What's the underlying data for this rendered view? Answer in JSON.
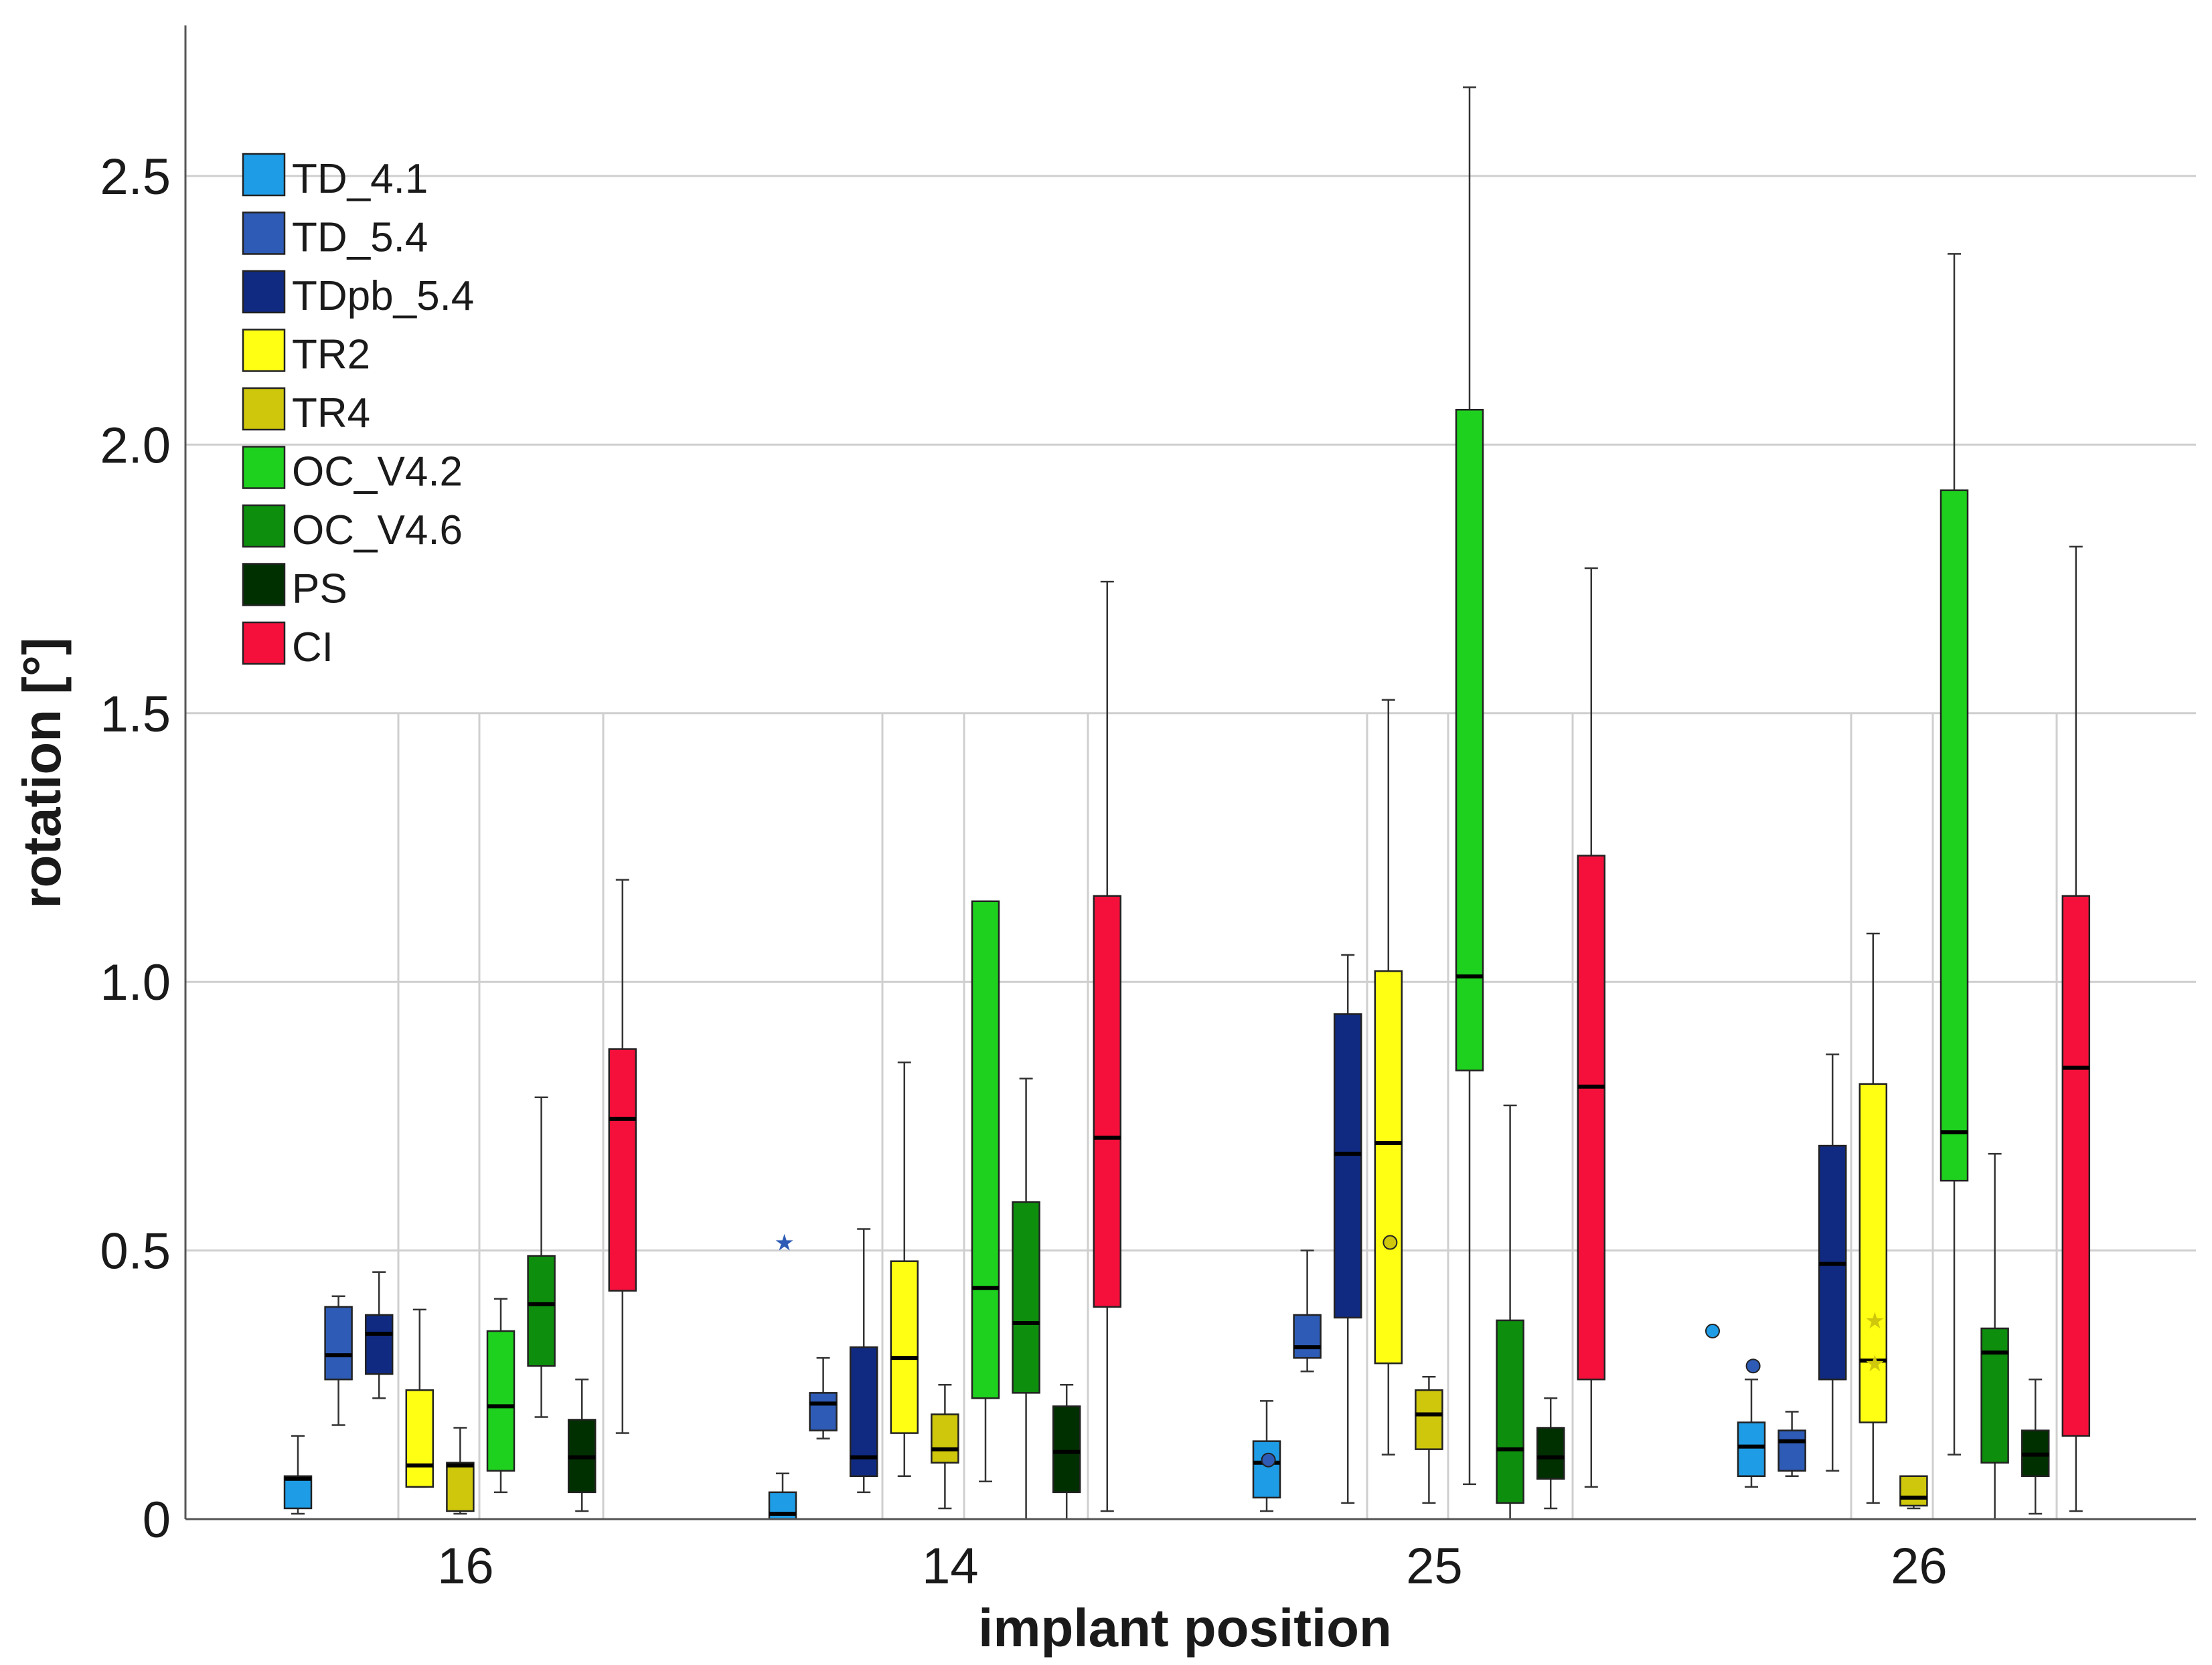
{
  "chart_data": {
    "type": "boxplot",
    "title": "",
    "xlabel": "implant position",
    "ylabel": "rotation [°]",
    "ylim": [
      0,
      2.75
    ],
    "yticks": [
      0,
      0.5,
      1.0,
      1.5,
      2.0,
      2.5
    ],
    "ytick_labels": [
      "0",
      "0.5",
      "1.0",
      "1.5",
      "2.0",
      "2.5"
    ],
    "grid": true,
    "legend_position": "top-left",
    "categories": [
      "16",
      "14",
      "25",
      "26"
    ],
    "series": [
      {
        "name": "TD_4.1",
        "color": "#1e9ce6",
        "boxes": [
          {
            "min": 0.01,
            "q1": 0.02,
            "median": 0.075,
            "q3": 0.08,
            "max": 0.155,
            "outliers": []
          },
          {
            "min": 0.0,
            "q1": 0.0,
            "median": 0.01,
            "q3": 0.05,
            "max": 0.085,
            "outliers": []
          },
          {
            "min": 0.015,
            "q1": 0.04,
            "median": 0.105,
            "q3": 0.145,
            "max": 0.22,
            "outliers": []
          },
          {
            "min": 0.06,
            "q1": 0.08,
            "median": 0.135,
            "q3": 0.18,
            "max": 0.26,
            "outliers": [
              {
                "value": 0.35,
                "marker": "circle"
              }
            ]
          }
        ]
      },
      {
        "name": "TD_5.4",
        "color": "#2e5bb5",
        "boxes": [
          {
            "min": 0.175,
            "q1": 0.26,
            "median": 0.305,
            "q3": 0.395,
            "max": 0.415,
            "outliers": []
          },
          {
            "min": 0.15,
            "q1": 0.165,
            "median": 0.215,
            "q3": 0.235,
            "max": 0.3,
            "outliers": [
              {
                "value": 0.515,
                "marker": "star"
              }
            ]
          },
          {
            "min": 0.275,
            "q1": 0.3,
            "median": 0.32,
            "q3": 0.38,
            "max": 0.5,
            "outliers": [
              {
                "value": 0.11,
                "marker": "circle"
              }
            ]
          },
          {
            "min": 0.08,
            "q1": 0.09,
            "median": 0.145,
            "q3": 0.165,
            "max": 0.2,
            "outliers": [
              {
                "value": 0.285,
                "marker": "circle"
              }
            ]
          }
        ]
      },
      {
        "name": "TDpb_5.4",
        "color": "#102a82",
        "boxes": [
          {
            "min": 0.225,
            "q1": 0.27,
            "median": 0.345,
            "q3": 0.38,
            "max": 0.46,
            "outliers": []
          },
          {
            "min": 0.05,
            "q1": 0.08,
            "median": 0.115,
            "q3": 0.32,
            "max": 0.54,
            "outliers": []
          },
          {
            "min": 0.03,
            "q1": 0.375,
            "median": 0.68,
            "q3": 0.94,
            "max": 1.05,
            "outliers": []
          },
          {
            "min": 0.09,
            "q1": 0.26,
            "median": 0.475,
            "q3": 0.695,
            "max": 0.865,
            "outliers": []
          }
        ]
      },
      {
        "name": "TR2",
        "color": "#ffff14",
        "boxes": [
          {
            "min": 0.06,
            "q1": 0.06,
            "median": 0.1,
            "q3": 0.24,
            "max": 0.39,
            "outliers": []
          },
          {
            "min": 0.08,
            "q1": 0.16,
            "median": 0.3,
            "q3": 0.48,
            "max": 0.85,
            "outliers": []
          },
          {
            "min": 0.12,
            "q1": 0.29,
            "median": 0.7,
            "q3": 1.02,
            "max": 1.525,
            "outliers": []
          },
          {
            "min": 0.03,
            "q1": 0.18,
            "median": 0.295,
            "q3": 0.81,
            "max": 1.09,
            "outliers": []
          }
        ]
      },
      {
        "name": "TR4",
        "color": "#cfc70b",
        "boxes": [
          {
            "min": 0.01,
            "q1": 0.015,
            "median": 0.1,
            "q3": 0.105,
            "max": 0.17,
            "outliers": []
          },
          {
            "min": 0.02,
            "q1": 0.105,
            "median": 0.13,
            "q3": 0.195,
            "max": 0.25,
            "outliers": []
          },
          {
            "min": 0.03,
            "q1": 0.13,
            "median": 0.195,
            "q3": 0.24,
            "max": 0.265,
            "outliers": [
              {
                "value": 0.515,
                "marker": "circle"
              }
            ]
          },
          {
            "min": 0.02,
            "q1": 0.025,
            "median": 0.04,
            "q3": 0.08,
            "max": 0.08,
            "outliers": [
              {
                "value": 0.29,
                "marker": "star"
              },
              {
                "value": 0.37,
                "marker": "star"
              }
            ]
          }
        ]
      },
      {
        "name": "OC_V4.2",
        "color": "#1ed11e",
        "boxes": [
          {
            "min": 0.05,
            "q1": 0.09,
            "median": 0.21,
            "q3": 0.35,
            "max": 0.41,
            "outliers": []
          },
          {
            "min": 0.07,
            "q1": 0.225,
            "median": 0.43,
            "q3": 1.15,
            "max": 1.15,
            "outliers": []
          },
          {
            "min": 0.065,
            "q1": 0.835,
            "median": 1.01,
            "q3": 2.065,
            "max": 2.665,
            "outliers": []
          },
          {
            "min": 0.12,
            "q1": 0.63,
            "median": 0.72,
            "q3": 1.915,
            "max": 2.355,
            "outliers": []
          }
        ]
      },
      {
        "name": "OC_V4.6",
        "color": "#0d8f0d",
        "boxes": [
          {
            "min": 0.19,
            "q1": 0.285,
            "median": 0.4,
            "q3": 0.49,
            "max": 0.785,
            "outliers": []
          },
          {
            "min": 0.0,
            "q1": 0.235,
            "median": 0.365,
            "q3": 0.59,
            "max": 0.82,
            "outliers": []
          },
          {
            "min": 0.0,
            "q1": 0.03,
            "median": 0.13,
            "q3": 0.37,
            "max": 0.77,
            "outliers": []
          },
          {
            "min": 0.0,
            "q1": 0.105,
            "median": 0.31,
            "q3": 0.355,
            "max": 0.68,
            "outliers": []
          }
        ]
      },
      {
        "name": "PS",
        "color": "#003000",
        "boxes": [
          {
            "min": 0.015,
            "q1": 0.05,
            "median": 0.115,
            "q3": 0.185,
            "max": 0.26,
            "outliers": []
          },
          {
            "min": 0.0,
            "q1": 0.05,
            "median": 0.125,
            "q3": 0.21,
            "max": 0.25,
            "outliers": []
          },
          {
            "min": 0.02,
            "q1": 0.075,
            "median": 0.115,
            "q3": 0.17,
            "max": 0.225,
            "outliers": []
          },
          {
            "min": 0.01,
            "q1": 0.08,
            "median": 0.12,
            "q3": 0.165,
            "max": 0.26,
            "outliers": []
          }
        ]
      },
      {
        "name": "CI",
        "color": "#f5103c",
        "boxes": [
          {
            "min": 0.16,
            "q1": 0.425,
            "median": 0.745,
            "q3": 0.875,
            "max": 1.19,
            "outliers": []
          },
          {
            "min": 0.015,
            "q1": 0.395,
            "median": 0.71,
            "q3": 1.16,
            "max": 1.745,
            "outliers": []
          },
          {
            "min": 0.06,
            "q1": 0.26,
            "median": 0.805,
            "q3": 1.235,
            "max": 1.77,
            "outliers": []
          },
          {
            "min": 0.015,
            "q1": 0.155,
            "median": 0.84,
            "q3": 1.16,
            "max": 1.81,
            "outliers": []
          }
        ]
      }
    ]
  }
}
